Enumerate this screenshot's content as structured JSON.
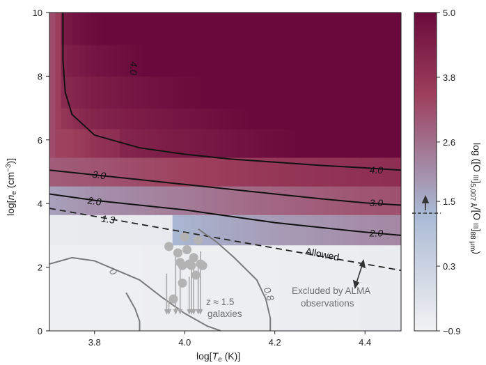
{
  "chart_data": {
    "type": "heatmap",
    "xlabel": "log[T_e (K)]",
    "ylabel": "log[n_e (cm^-3)]",
    "xlim": [
      3.7,
      4.48
    ],
    "ylim": [
      0,
      10
    ],
    "x_ticks": [
      "3.8",
      "4.0",
      "4.2",
      "4.4"
    ],
    "x_tick_values": [
      3.8,
      4.0,
      4.2,
      4.4
    ],
    "y_ticks": [
      "0",
      "2",
      "4",
      "6",
      "8",
      "10"
    ],
    "y_tick_values": [
      0,
      2,
      4,
      6,
      8,
      10
    ],
    "colorbar": {
      "label": "log ([O III]5,007 Å/[O III]88 μm)",
      "label_main": "log ([O ",
      "label_ion": "III",
      "label_sub1": "5,007 Å",
      "label_mid": "/[O ",
      "label_ion2": "III",
      "label_sub2": "88 μm",
      "label_end": ")",
      "ticks": [
        "5.0",
        "3.8",
        "2.6",
        "1.5",
        "0.3",
        "−0.9"
      ],
      "tick_values": [
        5.0,
        3.8,
        2.6,
        1.5,
        0.3,
        -0.9
      ],
      "range": [
        -0.9,
        5.0
      ],
      "threshold": 1.3,
      "colormap": [
        "#f2f2f2",
        "#a9b9d4",
        "#9d3f5c",
        "#6a0a3c"
      ]
    },
    "contours": [
      {
        "label": "4.0",
        "style": "solid",
        "points": [
          [
            3.73,
            10.0
          ],
          [
            3.73,
            8.5
          ],
          [
            3.735,
            7.5
          ],
          [
            3.75,
            6.8
          ],
          [
            3.8,
            6.15
          ],
          [
            3.9,
            5.75
          ],
          [
            4.0,
            5.55
          ],
          [
            4.1,
            5.4
          ],
          [
            4.2,
            5.3
          ],
          [
            4.3,
            5.2
          ],
          [
            4.4,
            5.12
          ],
          [
            4.48,
            5.05
          ]
        ]
      },
      {
        "label": "3.0",
        "style": "solid",
        "points": [
          [
            3.7,
            5.05
          ],
          [
            3.8,
            4.9
          ],
          [
            3.9,
            4.75
          ],
          [
            4.0,
            4.6
          ],
          [
            4.1,
            4.45
          ],
          [
            4.2,
            4.3
          ],
          [
            4.3,
            4.15
          ],
          [
            4.4,
            4.02
          ],
          [
            4.48,
            3.95
          ]
        ]
      },
      {
        "label": "2.0",
        "style": "solid",
        "points": [
          [
            3.7,
            4.3
          ],
          [
            3.8,
            4.1
          ],
          [
            3.9,
            3.95
          ],
          [
            4.0,
            3.8
          ],
          [
            4.1,
            3.6
          ],
          [
            4.2,
            3.4
          ],
          [
            4.3,
            3.25
          ],
          [
            4.4,
            3.1
          ],
          [
            4.48,
            3.0
          ]
        ]
      },
      {
        "label": "1.3",
        "style": "dashed",
        "points": [
          [
            3.7,
            3.85
          ],
          [
            3.8,
            3.6
          ],
          [
            3.9,
            3.35
          ],
          [
            4.0,
            3.1
          ],
          [
            4.1,
            2.85
          ],
          [
            4.2,
            2.6
          ],
          [
            4.3,
            2.35
          ],
          [
            4.4,
            2.1
          ],
          [
            4.48,
            1.9
          ]
        ]
      },
      {
        "label": "0",
        "style": "grey",
        "points": [
          [
            3.7,
            2.1
          ],
          [
            3.75,
            2.3
          ],
          [
            3.8,
            2.2
          ],
          [
            3.85,
            1.9
          ],
          [
            3.9,
            1.6
          ],
          [
            3.95,
            1.05
          ],
          [
            4.0,
            0.55
          ],
          [
            4.05,
            0.15
          ],
          [
            4.08,
            0.0
          ]
        ]
      },
      {
        "label": "0",
        "style": "grey",
        "points": [
          [
            3.87,
            1.2
          ],
          [
            3.89,
            0.7
          ],
          [
            3.9,
            0.3
          ],
          [
            3.9,
            0.0
          ]
        ]
      },
      {
        "label": "0.8",
        "style": "grey",
        "points": [
          [
            4.03,
            3.2
          ],
          [
            4.07,
            2.8
          ],
          [
            4.11,
            2.3
          ],
          [
            4.16,
            1.6
          ],
          [
            4.18,
            1.0
          ],
          [
            4.19,
            0.4
          ],
          [
            4.19,
            0.0
          ]
        ]
      }
    ],
    "contour_labels": [
      {
        "text": "4.0",
        "x": 3.885,
        "y": 8.25,
        "angle": 92,
        "color": "#111111"
      },
      {
        "text": "3.0",
        "x": 3.81,
        "y": 4.87,
        "angle": 8,
        "color": "#111111"
      },
      {
        "text": "4.0",
        "x": 4.425,
        "y": 5.03,
        "angle": 0,
        "color": "#111111"
      },
      {
        "text": "2.0",
        "x": 3.8,
        "y": 4.05,
        "angle": 8,
        "color": "#111111"
      },
      {
        "text": "3.0",
        "x": 4.425,
        "y": 4.0,
        "angle": 0,
        "color": "#111111"
      },
      {
        "text": "2.0",
        "x": 4.425,
        "y": 3.05,
        "angle": 0,
        "color": "#111111"
      },
      {
        "text": "1.3",
        "x": 3.83,
        "y": 3.48,
        "angle": 8,
        "color": "#111111"
      },
      {
        "text": "0",
        "x": 3.84,
        "y": 1.85,
        "angle": 60,
        "color": "#7a7a7a"
      },
      {
        "text": "0.8",
        "x": 4.185,
        "y": 1.15,
        "angle": 70,
        "color": "#7a7a7a"
      }
    ],
    "galaxies": {
      "label_line1": "z ≈ 1.5",
      "label_line2": "galaxies",
      "points": [
        [
          3.965,
          2.65
        ],
        [
          3.975,
          1.0
        ],
        [
          3.985,
          2.45
        ],
        [
          3.99,
          2.15
        ],
        [
          3.995,
          1.5
        ],
        [
          3.995,
          2.05
        ],
        [
          4.0,
          2.95
        ],
        [
          4.005,
          2.55
        ],
        [
          4.01,
          2.1
        ],
        [
          4.015,
          2.05
        ],
        [
          4.02,
          2.3
        ],
        [
          4.025,
          1.75
        ],
        [
          4.03,
          2.85
        ],
        [
          4.035,
          2.1
        ],
        [
          4.04,
          2.05
        ]
      ],
      "upper_limits": [
        [
          3.96,
          1.8
        ],
        [
          3.965,
          0.95
        ],
        [
          3.98,
          2.5
        ],
        [
          3.99,
          2.1
        ],
        [
          4.01,
          1.7
        ],
        [
          4.015,
          2.15
        ],
        [
          4.02,
          2.45
        ],
        [
          4.03,
          2.0
        ],
        [
          4.035,
          2.5
        ]
      ]
    },
    "annotations": {
      "allowed": "Allowed",
      "excluded_line1": "Excluded by ALMA",
      "excluded_line2": "observations"
    }
  }
}
